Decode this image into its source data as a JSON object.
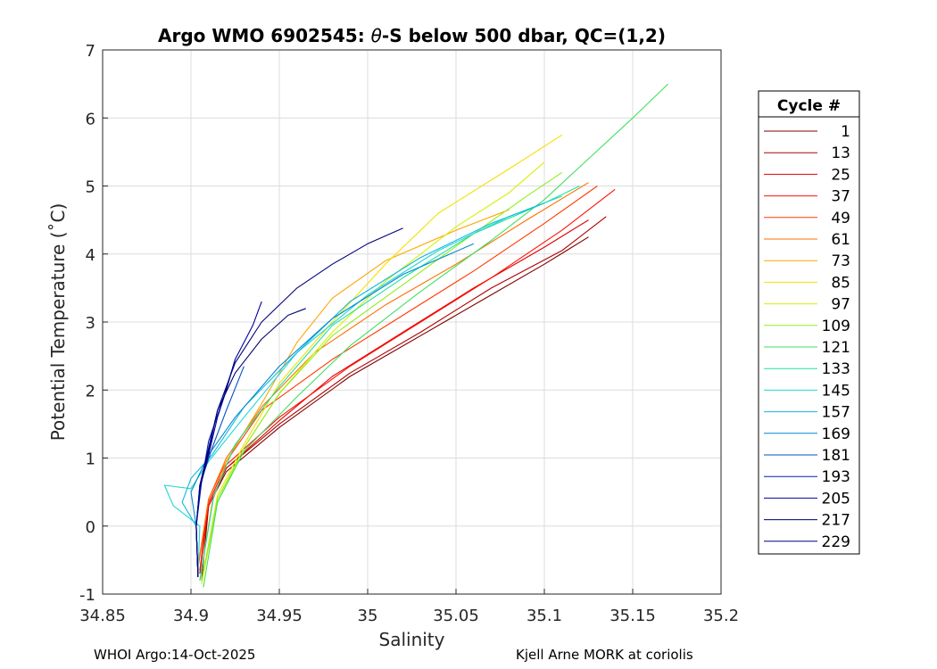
{
  "chart_data": {
    "type": "line",
    "title": "Argo WMO 6902545: θ-S below 500 dbar,  QC=(1,2)",
    "title_parts": {
      "prefix": "Argo WMO 6902545: ",
      "symbol": "θ",
      "suffix": "-S below 500 dbar,  QC=(1,2)"
    },
    "xlabel": "Salinity",
    "ylabel": "Potential Temperature (˚C)",
    "xlim": [
      34.85,
      35.2
    ],
    "ylim": [
      -1,
      7
    ],
    "xticks": [
      34.85,
      34.9,
      34.95,
      35,
      35.05,
      35.1,
      35.15,
      35.2
    ],
    "xtick_labels": [
      "34.85",
      "34.9",
      "34.95",
      "35",
      "35.05",
      "35.1",
      "35.15",
      "35.2"
    ],
    "yticks": [
      -1,
      0,
      1,
      2,
      3,
      4,
      5,
      6,
      7
    ],
    "ytick_labels": [
      "-1",
      "0",
      "1",
      "2",
      "3",
      "4",
      "5",
      "6",
      "7"
    ],
    "grid": true,
    "legend": {
      "title": "Cycle #",
      "placement": "outside-right",
      "entries": [
        {
          "label": "1",
          "color": "#800000"
        },
        {
          "label": "13",
          "color": "#b00000"
        },
        {
          "label": "25",
          "color": "#e00000"
        },
        {
          "label": "37",
          "color": "#ff1000"
        },
        {
          "label": "49",
          "color": "#ff3a00"
        },
        {
          "label": "61",
          "color": "#ff7000"
        },
        {
          "label": "73",
          "color": "#ffa500"
        },
        {
          "label": "85",
          "color": "#f5e000"
        },
        {
          "label": "97",
          "color": "#d8f000"
        },
        {
          "label": "109",
          "color": "#90ee20"
        },
        {
          "label": "121",
          "color": "#40e060"
        },
        {
          "label": "133",
          "color": "#20e0a0"
        },
        {
          "label": "145",
          "color": "#20d8d0"
        },
        {
          "label": "157",
          "color": "#10b8e0"
        },
        {
          "label": "169",
          "color": "#0088d0"
        },
        {
          "label": "181",
          "color": "#0050c0"
        },
        {
          "label": "193",
          "color": "#0020b0"
        },
        {
          "label": "205",
          "color": "#000098"
        },
        {
          "label": "217",
          "color": "#000070"
        },
        {
          "label": "229",
          "color": "#000080"
        }
      ]
    },
    "series": [
      {
        "color": "#800000",
        "x": [
          34.906,
          34.91,
          34.92,
          34.95,
          34.99,
          35.03,
          35.07,
          35.1,
          35.125
        ],
        "y": [
          -0.8,
          0.3,
          0.8,
          1.45,
          2.2,
          2.8,
          3.4,
          3.85,
          4.25
        ]
      },
      {
        "color": "#b00000",
        "x": [
          34.905,
          34.91,
          34.92,
          34.95,
          34.99,
          35.03,
          35.07,
          35.11,
          35.135
        ],
        "y": [
          -0.7,
          0.3,
          0.85,
          1.5,
          2.25,
          2.85,
          3.5,
          4.05,
          4.55
        ]
      },
      {
        "color": "#e00000",
        "x": [
          34.904,
          34.91,
          34.92,
          34.95,
          34.98,
          35.02,
          35.06,
          35.1,
          35.125
        ],
        "y": [
          -0.6,
          0.3,
          0.85,
          1.55,
          2.2,
          2.85,
          3.5,
          4.1,
          4.5
        ]
      },
      {
        "color": "#ff1000",
        "x": [
          34.905,
          34.91,
          34.92,
          34.95,
          34.99,
          35.03,
          35.07,
          35.11,
          35.14
        ],
        "y": [
          -0.65,
          0.35,
          0.9,
          1.6,
          2.35,
          3.0,
          3.65,
          4.35,
          4.95
        ]
      },
      {
        "color": "#ff3a00",
        "x": [
          34.904,
          34.91,
          34.92,
          34.94,
          34.98,
          35.02,
          35.06,
          35.1,
          35.13
        ],
        "y": [
          -0.6,
          0.4,
          0.95,
          1.7,
          2.45,
          3.1,
          3.75,
          4.45,
          5.0
        ]
      },
      {
        "color": "#ff7000",
        "x": [
          34.904,
          34.91,
          34.92,
          34.94,
          34.97,
          35.01,
          35.05,
          35.09,
          35.125
        ],
        "y": [
          -0.6,
          0.4,
          1.0,
          1.75,
          2.55,
          3.25,
          3.85,
          4.5,
          5.05
        ]
      },
      {
        "color": "#ffa500",
        "x": [
          34.905,
          34.912,
          34.92,
          34.94,
          34.96,
          34.98,
          35.01,
          35.05,
          35.08
        ],
        "y": [
          -0.8,
          0.35,
          0.95,
          1.8,
          2.7,
          3.35,
          3.9,
          4.35,
          4.65
        ]
      },
      {
        "color": "#f5e000",
        "x": [
          34.906,
          34.915,
          34.93,
          34.95,
          34.98,
          35.01,
          35.04,
          35.08,
          35.11
        ],
        "y": [
          -0.85,
          0.45,
          1.2,
          2.1,
          3.0,
          3.85,
          4.6,
          5.25,
          5.75
        ]
      },
      {
        "color": "#d8f000",
        "x": [
          34.906,
          34.915,
          34.93,
          34.95,
          34.98,
          35.01,
          35.05,
          35.08,
          35.1
        ],
        "y": [
          -0.85,
          0.35,
          1.15,
          1.95,
          2.85,
          3.6,
          4.4,
          4.9,
          5.35
        ]
      },
      {
        "color": "#90ee20",
        "x": [
          34.906,
          34.915,
          34.93,
          34.95,
          34.98,
          35.02,
          35.06,
          35.09,
          35.11
        ],
        "y": [
          -0.8,
          0.4,
          1.15,
          1.95,
          2.8,
          3.55,
          4.3,
          4.85,
          5.2
        ]
      },
      {
        "color": "#40e060",
        "x": [
          34.907,
          34.915,
          34.93,
          34.96,
          34.99,
          35.03,
          35.07,
          35.1,
          35.125,
          35.15,
          35.17
        ],
        "y": [
          -0.9,
          0.35,
          1.1,
          1.9,
          2.65,
          3.45,
          4.2,
          4.8,
          5.4,
          6.0,
          6.5
        ]
      },
      {
        "color": "#20e0a0",
        "x": [
          34.905,
          34.913,
          34.925,
          34.95,
          34.98,
          35.02,
          35.06,
          35.1,
          35.12
        ],
        "y": [
          -0.8,
          0.45,
          1.2,
          2.05,
          2.95,
          3.65,
          4.3,
          4.75,
          5.0
        ]
      },
      {
        "color": "#20d8d0",
        "x": [
          34.904,
          34.905,
          34.89,
          34.885,
          34.9,
          34.91,
          34.93,
          34.96,
          35.0,
          35.04,
          35.08,
          35.11
        ],
        "y": [
          -0.7,
          0.0,
          0.3,
          0.6,
          0.55,
          0.95,
          1.6,
          2.55,
          3.4,
          4.05,
          4.55,
          4.85
        ]
      },
      {
        "color": "#10b8e0",
        "x": [
          34.904,
          34.903,
          34.895,
          34.9,
          34.912,
          34.93,
          34.96,
          34.99,
          35.03,
          35.07,
          35.1
        ],
        "y": [
          -0.75,
          0.0,
          0.35,
          0.7,
          1.05,
          1.75,
          2.55,
          3.3,
          3.95,
          4.45,
          4.75
        ]
      },
      {
        "color": "#0088d0",
        "x": [
          34.904,
          34.903,
          34.9,
          34.91,
          34.925,
          34.95,
          34.98,
          35.02,
          35.06
        ],
        "y": [
          -0.75,
          0.0,
          0.5,
          1.05,
          1.6,
          2.35,
          3.05,
          3.7,
          4.15
        ]
      },
      {
        "color": "#0050c0",
        "x": [
          34.904,
          34.903,
          34.905,
          34.912,
          34.92,
          34.93
        ],
        "y": [
          -0.75,
          0.0,
          0.6,
          1.15,
          1.7,
          2.35
        ]
      },
      {
        "color": "#0020b0",
        "x": [
          34.904,
          34.903,
          34.906,
          34.91,
          34.918,
          34.925
        ],
        "y": [
          -0.75,
          0.0,
          0.65,
          1.25,
          1.85,
          2.45
        ]
      },
      {
        "color": "#000098",
        "x": [
          34.904,
          34.903,
          34.905,
          34.91,
          34.915,
          34.92,
          34.925,
          34.935,
          34.94
        ],
        "y": [
          -0.75,
          0.0,
          0.55,
          1.05,
          1.6,
          2.0,
          2.45,
          2.95,
          3.3
        ]
      },
      {
        "color": "#000070",
        "x": [
          34.904,
          34.903,
          34.905,
          34.91,
          34.915,
          34.925,
          34.94,
          34.955,
          34.965
        ],
        "y": [
          -0.75,
          0.0,
          0.6,
          1.15,
          1.7,
          2.25,
          2.75,
          3.1,
          3.2
        ]
      },
      {
        "color": "#000080",
        "x": [
          34.904,
          34.903,
          34.905,
          34.91,
          34.915,
          34.925,
          34.94,
          34.96,
          34.98,
          35.0,
          35.02
        ],
        "y": [
          -0.75,
          0.0,
          0.55,
          1.1,
          1.7,
          2.4,
          3.0,
          3.5,
          3.85,
          4.15,
          4.38
        ]
      }
    ]
  },
  "footer": {
    "left": "WHOI Argo:14-Oct-2025",
    "right": "Kjell Arne MORK at coriolis"
  }
}
